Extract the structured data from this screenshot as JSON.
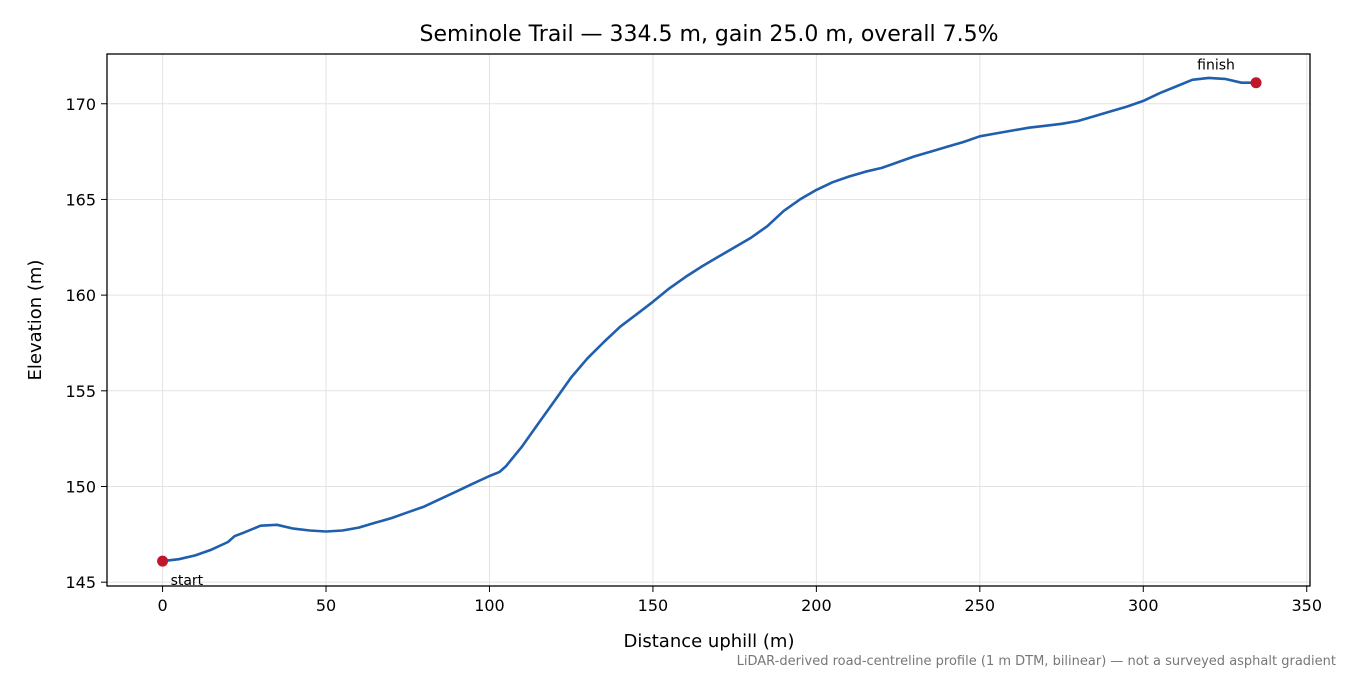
{
  "chart_data": {
    "type": "line",
    "title": "Seminole Trail — 334.5 m, gain 25.0 m, overall 7.5%",
    "xlabel": "Distance uphill (m)",
    "ylabel": "Elevation (m)",
    "xlim": [
      -17,
      351
    ],
    "ylim": [
      144.8,
      172.6
    ],
    "xticks": [
      0,
      50,
      100,
      150,
      200,
      250,
      300,
      350
    ],
    "yticks": [
      145,
      150,
      155,
      160,
      165,
      170
    ],
    "grid": true,
    "series": [
      {
        "x": [
          0,
          5,
          10,
          15,
          20,
          22,
          25,
          30,
          35,
          40,
          45,
          50,
          55,
          60,
          65,
          70,
          75,
          80,
          85,
          90,
          95,
          100,
          103,
          105,
          110,
          115,
          120,
          125,
          130,
          135,
          140,
          145,
          150,
          155,
          160,
          165,
          170,
          175,
          180,
          185,
          190,
          195,
          200,
          205,
          210,
          215,
          220,
          225,
          230,
          235,
          240,
          245,
          250,
          255,
          260,
          265,
          270,
          275,
          280,
          285,
          290,
          295,
          300,
          305,
          310,
          315,
          320,
          325,
          330,
          334.5
        ],
        "y": [
          146.1,
          146.2,
          146.4,
          146.7,
          147.1,
          147.4,
          147.6,
          147.95,
          148.0,
          147.8,
          147.7,
          147.65,
          147.7,
          147.85,
          148.1,
          148.35,
          148.65,
          148.95,
          149.35,
          149.75,
          150.15,
          150.55,
          150.75,
          151.05,
          152.1,
          153.3,
          154.5,
          155.7,
          156.7,
          157.55,
          158.35,
          159.0,
          159.65,
          160.35,
          160.95,
          161.5,
          162.0,
          162.5,
          163.0,
          163.6,
          164.4,
          165.0,
          165.5,
          165.9,
          166.2,
          166.45,
          166.65,
          166.95,
          167.25,
          167.5,
          167.75,
          168.0,
          168.3,
          168.45,
          168.6,
          168.75,
          168.85,
          168.95,
          169.1,
          169.35,
          169.6,
          169.85,
          170.15,
          170.55,
          170.9,
          171.25,
          171.35,
          171.3,
          171.1,
          171.1
        ],
        "color": "#1f5fad"
      }
    ],
    "markers": [
      {
        "x": 0,
        "y": 146.1,
        "color": "#c0182a"
      },
      {
        "x": 334.5,
        "y": 171.1,
        "color": "#c0182a"
      }
    ],
    "annotations": [
      {
        "text": "start",
        "x": 0,
        "y": 146.1
      },
      {
        "text": "finish",
        "x": 334.5,
        "y": 171.1
      }
    ],
    "footnote": "LiDAR-derived road-centreline profile (1 m DTM, bilinear) — not a surveyed asphalt gradient"
  }
}
